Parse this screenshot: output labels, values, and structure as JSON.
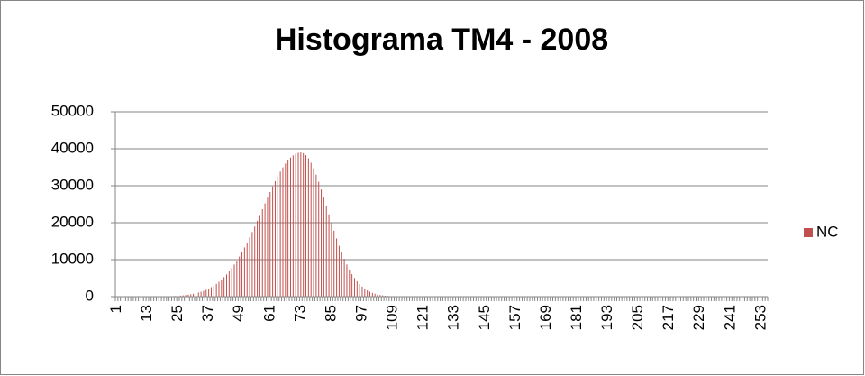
{
  "chart_data": {
    "type": "bar",
    "title": "Histograma TM4 - 2008",
    "categories": [
      "1",
      null,
      null,
      null,
      null,
      null,
      null,
      null,
      null,
      null,
      null,
      null,
      "13",
      null,
      null,
      null,
      null,
      null,
      null,
      null,
      null,
      null,
      null,
      null,
      "25",
      null,
      null,
      null,
      null,
      null,
      null,
      null,
      null,
      null,
      null,
      null,
      "37",
      null,
      null,
      null,
      null,
      null,
      null,
      null,
      null,
      null,
      null,
      null,
      "49",
      null,
      null,
      null,
      null,
      null,
      null,
      null,
      null,
      null,
      null,
      null,
      "61",
      null,
      null,
      null,
      null,
      null,
      null,
      null,
      null,
      null,
      null,
      null,
      "73",
      null,
      null,
      null,
      null,
      null,
      null,
      null,
      null,
      null,
      null,
      null,
      "85",
      null,
      null,
      null,
      null,
      null,
      null,
      null,
      null,
      null,
      null,
      null,
      "97",
      null,
      null,
      null,
      null,
      null,
      null,
      null,
      null,
      null,
      null,
      null,
      "109",
      null,
      null,
      null,
      null,
      null,
      null,
      null,
      null,
      null,
      null,
      null,
      "121",
      null,
      null,
      null,
      null,
      null,
      null,
      null,
      null,
      null,
      null,
      null,
      "133",
      null,
      null,
      null,
      null,
      null,
      null,
      null,
      null,
      null,
      null,
      null,
      "145",
      null,
      null,
      null,
      null,
      null,
      null,
      null,
      null,
      null,
      null,
      null,
      "157",
      null,
      null,
      null,
      null,
      null,
      null,
      null,
      null,
      null,
      null,
      null,
      "169",
      null,
      null,
      null,
      null,
      null,
      null,
      null,
      null,
      null,
      null,
      null,
      "181",
      null,
      null,
      null,
      null,
      null,
      null,
      null,
      null,
      null,
      null,
      null,
      "193",
      null,
      null,
      null,
      null,
      null,
      null,
      null,
      null,
      null,
      null,
      null,
      "205",
      null,
      null,
      null,
      null,
      null,
      null,
      null,
      null,
      null,
      null,
      null,
      "217",
      null,
      null,
      null,
      null,
      null,
      null,
      null,
      null,
      null,
      null,
      null,
      "229",
      null,
      null,
      null,
      null,
      null,
      null,
      null,
      null,
      null,
      null,
      null,
      "241",
      null,
      null,
      null,
      null,
      null,
      null,
      null,
      null,
      null,
      null,
      null,
      "253",
      null,
      null
    ],
    "series": [
      {
        "name": "NC",
        "color": "#c0504d",
        "values": [
          0,
          1,
          1,
          1,
          1,
          2,
          2,
          3,
          4,
          6,
          8,
          10,
          13,
          17,
          22,
          28,
          37,
          47,
          60,
          76,
          96,
          121,
          151,
          188,
          233,
          288,
          354,
          433,
          527,
          640,
          772,
          932,
          1115,
          1326,
          1576,
          1860,
          2188,
          2562,
          2987,
          3467,
          4005,
          4610,
          5277,
          6018,
          6829,
          7718,
          8685,
          9727,
          10842,
          12035,
          13303,
          14637,
          16033,
          17484,
          18985,
          20518,
          22078,
          23654,
          25229,
          26790,
          28318,
          29804,
          31227,
          32577,
          33829,
          34975,
          36001,
          36893,
          37636,
          38227,
          38653,
          38913,
          39000,
          38820,
          38286,
          37409,
          36216,
          34737,
          33014,
          31083,
          29000,
          26805,
          24547,
          22273,
          20022,
          17835,
          15740,
          13763,
          11922,
          10234,
          8701,
          7332,
          6119,
          5062,
          4150,
          3370,
          2711,
          2161,
          1704,
          1334,
          1034,
          796,
          605,
          456,
          340,
          252,
          185,
          134,
          97,
          69,
          49,
          34,
          24,
          16,
          11,
          7,
          5,
          3,
          2,
          1,
          1,
          0,
          0,
          0,
          0,
          0,
          0,
          0,
          0,
          0,
          0,
          0,
          0,
          0,
          0,
          0,
          0,
          0,
          0,
          0,
          0,
          0,
          0,
          0,
          0,
          0,
          0,
          0,
          0,
          0,
          0,
          0,
          0,
          0,
          0,
          0,
          0,
          0,
          0,
          0,
          0,
          0,
          0,
          0,
          0,
          0,
          0,
          0,
          0,
          0,
          0,
          0,
          0,
          0,
          0,
          0,
          0,
          0,
          0,
          0,
          0,
          0,
          0,
          0,
          0,
          0,
          0,
          0,
          0,
          0,
          0,
          0,
          0,
          0,
          0,
          0,
          0,
          0,
          0,
          0,
          0,
          0,
          0,
          0,
          0,
          0,
          0,
          0,
          0,
          0,
          0,
          0,
          0,
          0,
          0,
          0,
          0,
          0,
          0,
          0,
          0,
          0,
          0,
          0,
          0,
          0,
          0,
          0,
          0,
          0,
          0,
          0,
          0,
          0,
          0,
          0,
          0,
          0,
          0,
          0,
          0,
          0,
          0,
          0,
          0,
          0,
          0,
          0,
          0,
          0,
          0,
          0,
          0,
          0,
          0
        ]
      }
    ],
    "ylim": [
      0,
      50000
    ],
    "yticks": [
      0,
      10000,
      20000,
      30000,
      40000,
      50000
    ],
    "grid": true,
    "legend": "right"
  }
}
